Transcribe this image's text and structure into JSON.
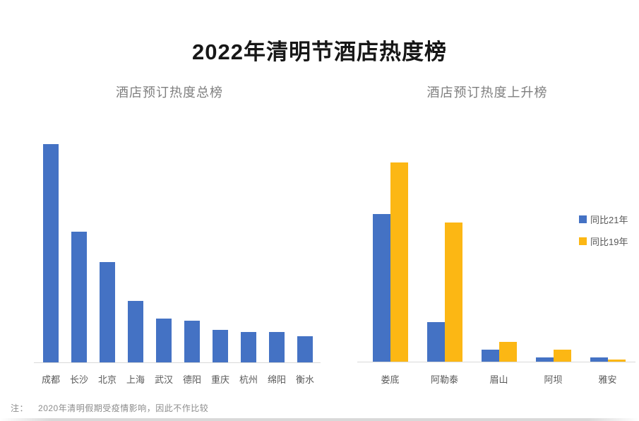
{
  "page": {
    "title": "2022年清明节酒店热度榜",
    "note_prefix": "注：",
    "note_text": "2020年清明假期受疫情影响，因此不作比较"
  },
  "colors": {
    "bar_blue": "#4472C4",
    "bar_yellow": "#FCB714",
    "axis_line": "#D9D9D9",
    "axis_label_gray": "#595959",
    "subtitle_gray": "#7F7F7F",
    "title_black": "#171717"
  },
  "legend": {
    "items": [
      {
        "label": "同比21年",
        "color": "#4472C4"
      },
      {
        "label": "同比19年",
        "color": "#FCB714"
      }
    ]
  },
  "chart_data": [
    {
      "type": "bar",
      "title": "酒店预订热度总榜",
      "categories": [
        "成都",
        "长沙",
        "北京",
        "上海",
        "武汉",
        "德阳",
        "重庆",
        "杭州",
        "绵阳",
        "衡水"
      ],
      "series": [
        {
          "name": "酒店预订热度",
          "color": "#4472C4",
          "values": [
            100,
            60,
            46,
            28,
            20,
            19,
            15,
            14,
            14,
            12
          ]
        }
      ],
      "ylim": [
        0,
        100
      ],
      "values_estimated_from_bar_heights": true,
      "grid": false,
      "legend": false,
      "xlabel": "",
      "ylabel": ""
    },
    {
      "type": "bar",
      "title": "酒店预订热度上升榜",
      "categories": [
        "娄底",
        "阿勒泰",
        "眉山",
        "阿坝",
        "雅安"
      ],
      "series": [
        {
          "name": "同比21年",
          "color": "#4472C4",
          "values": [
            74,
            20,
            6,
            2,
            2
          ]
        },
        {
          "name": "同比19年",
          "color": "#FCB714",
          "values": [
            100,
            70,
            10,
            6,
            1
          ]
        }
      ],
      "ylim": [
        0,
        100
      ],
      "values_estimated_from_bar_heights": true,
      "grid": false,
      "legend_position": "right",
      "xlabel": "",
      "ylabel": ""
    }
  ]
}
